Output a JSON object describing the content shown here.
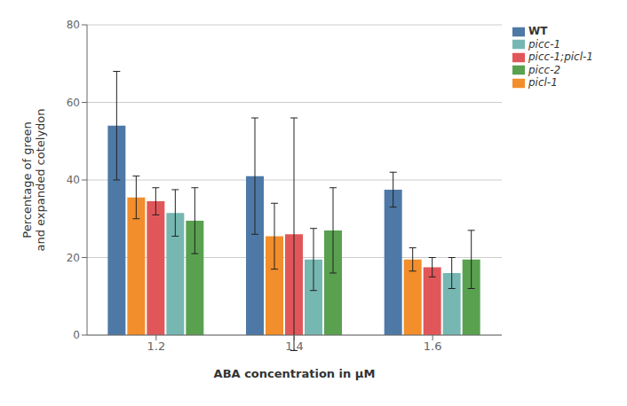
{
  "chart_data": {
    "type": "bar",
    "categories": [
      "1.2",
      "1.4",
      "1.6"
    ],
    "series": [
      {
        "name": "WT",
        "values": [
          54.0,
          41.0,
          37.5
        ],
        "errors": [
          14.0,
          15.0,
          4.5
        ]
      },
      {
        "name": "picl-1",
        "values": [
          35.5,
          25.5,
          19.5
        ],
        "errors": [
          5.5,
          8.5,
          3.0
        ]
      },
      {
        "name": "picc-1;picl-1",
        "values": [
          34.5,
          26.0,
          17.5
        ],
        "errors": [
          3.5,
          30.0,
          2.5
        ]
      },
      {
        "name": "picc-1",
        "values": [
          31.5,
          19.5,
          16.0
        ],
        "errors": [
          6.0,
          8.0,
          4.0
        ]
      },
      {
        "name": "picc-2",
        "values": [
          29.5,
          27.0,
          19.5
        ],
        "errors": [
          8.5,
          11.0,
          7.5
        ]
      }
    ],
    "xlabel": "ABA concentration in μM",
    "ylabel": "Percentage of green\nand expanded cotelydon",
    "ylim": [
      0,
      80
    ],
    "yticks": [
      0,
      20,
      40,
      60,
      80
    ],
    "grid": true,
    "legend": "upper right"
  }
}
